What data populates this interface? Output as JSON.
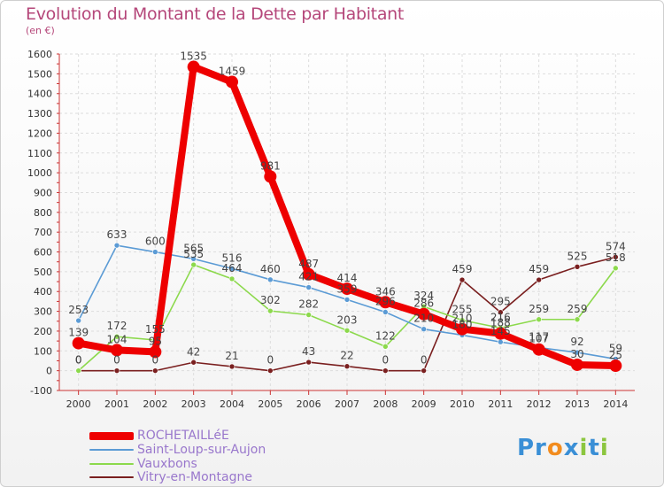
{
  "logo": {
    "text": "Proxiti"
  },
  "chart_data": {
    "type": "line",
    "title": "Evolution du Montant de la Dette par Habitant",
    "subtitle": "(en €)",
    "xlabel": "",
    "ylabel": "",
    "ylim": [
      -100,
      1600
    ],
    "grid": true,
    "legend_position": "bottom-left",
    "yticks": [
      "-100",
      "0",
      "100",
      "200",
      "300",
      "400",
      "500",
      "600",
      "700",
      "800",
      "900",
      "1000",
      "1100",
      "1200",
      "1300",
      "1400",
      "1500",
      "1600"
    ],
    "x": [
      "2000",
      "2001",
      "2002",
      "2003",
      "2004",
      "2005",
      "2006",
      "2007",
      "2008",
      "2009",
      "2010",
      "2011",
      "2012",
      "2013",
      "2014"
    ],
    "series": [
      {
        "name": "ROCHETAILLéE",
        "color": "#ee0000",
        "values": [
          139,
          104,
          95,
          1535,
          1459,
          981,
          487,
          414,
          346,
          286,
          210,
          188,
          107,
          30,
          25
        ]
      },
      {
        "name": "Saint-Loup-sur-Aujon",
        "color": "#5b9bd5",
        "values": [
          253,
          633,
          600,
          565,
          516,
          460,
          421,
          359,
          296,
          210,
          180,
          145,
          117,
          92,
          59
        ]
      },
      {
        "name": "Vauxbons",
        "color": "#8cd94c",
        "values": [
          0,
          172,
          155,
          535,
          464,
          302,
          282,
          203,
          122,
          324,
          255,
          216,
          259,
          259,
          518
        ]
      },
      {
        "name": "Vitry-en-Montagne",
        "color": "#7a1f1f",
        "values": [
          0,
          0,
          0,
          42,
          21,
          0,
          43,
          22,
          0,
          0,
          459,
          295,
          459,
          525,
          574
        ]
      }
    ]
  }
}
